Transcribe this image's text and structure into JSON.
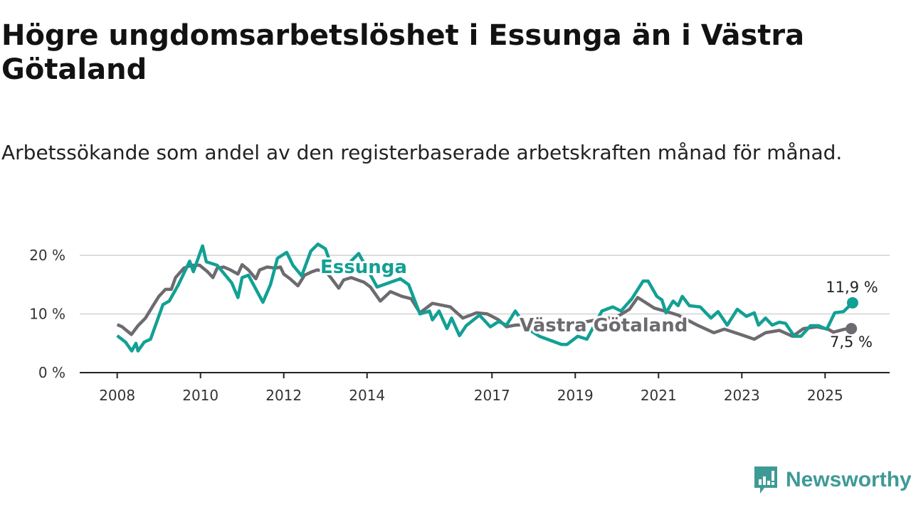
{
  "title": "Högre ungdomsarbetslöshet i Essunga än i Västra Götaland",
  "subtitle": "Arbetssökande som andel av den registerbaserade arbetskraften månad för månad.",
  "brand": {
    "name": "Newsworthy",
    "icon": "newsworthy-chart-bubble-icon",
    "color": "#3f9a96"
  },
  "chart_data": {
    "type": "line",
    "title": "Högre ungdomsarbetslöshet i Essunga än i Västra Götaland",
    "xlabel": "",
    "ylabel": "",
    "xlim": [
      2007.1,
      2026.55
    ],
    "ylim": [
      0,
      22
    ],
    "grid": true,
    "x_ticks": [
      {
        "value": 2008,
        "label": "2008"
      },
      {
        "value": 2010,
        "label": "2010"
      },
      {
        "value": 2012,
        "label": "2012"
      },
      {
        "value": 2014,
        "label": "2014"
      },
      {
        "value": 2017,
        "label": "2017"
      },
      {
        "value": 2019,
        "label": "2019"
      },
      {
        "value": 2021,
        "label": "2021"
      },
      {
        "value": 2023,
        "label": "2023"
      },
      {
        "value": 2025,
        "label": "2025"
      }
    ],
    "y_ticks": [
      {
        "value": 0,
        "label": "0 %"
      },
      {
        "value": 10,
        "label": "10 %"
      },
      {
        "value": 20,
        "label": "20 %"
      }
    ],
    "series": [
      {
        "name": "Västra Götaland",
        "color": "#6d6a70",
        "end_label": "7,5 %",
        "points": [
          [
            2008.0,
            8.2
          ],
          [
            2008.12,
            7.8
          ],
          [
            2008.34,
            6.5
          ],
          [
            2008.5,
            8
          ],
          [
            2008.68,
            9.3
          ],
          [
            2008.86,
            11.4
          ],
          [
            2009.0,
            13
          ],
          [
            2009.16,
            14.2
          ],
          [
            2009.3,
            14.2
          ],
          [
            2009.4,
            16.2
          ],
          [
            2009.6,
            17.8
          ],
          [
            2009.78,
            18.3
          ],
          [
            2009.98,
            18.3
          ],
          [
            2010.17,
            17.2
          ],
          [
            2010.3,
            16.2
          ],
          [
            2010.4,
            17.8
          ],
          [
            2010.56,
            18
          ],
          [
            2010.72,
            17.5
          ],
          [
            2010.9,
            16.8
          ],
          [
            2011.0,
            18.4
          ],
          [
            2011.15,
            17.5
          ],
          [
            2011.33,
            16
          ],
          [
            2011.42,
            17.5
          ],
          [
            2011.6,
            18
          ],
          [
            2011.8,
            17.8
          ],
          [
            2011.92,
            18
          ],
          [
            2012.0,
            16.8
          ],
          [
            2012.15,
            16
          ],
          [
            2012.34,
            14.8
          ],
          [
            2012.5,
            16.6
          ],
          [
            2012.68,
            17.2
          ],
          [
            2012.8,
            17.5
          ],
          [
            2013.0,
            17.3
          ],
          [
            2013.13,
            16.2
          ],
          [
            2013.32,
            14.4
          ],
          [
            2013.44,
            15.8
          ],
          [
            2013.62,
            16.2
          ],
          [
            2013.93,
            15.4
          ],
          [
            2014.08,
            14.6
          ],
          [
            2014.32,
            12.2
          ],
          [
            2014.56,
            13.8
          ],
          [
            2014.84,
            13
          ],
          [
            2015.06,
            12.6
          ],
          [
            2015.27,
            10.2
          ],
          [
            2015.57,
            11.8
          ],
          [
            2016.0,
            11.2
          ],
          [
            2016.3,
            9.3
          ],
          [
            2016.63,
            10.2
          ],
          [
            2016.89,
            10
          ],
          [
            2017.16,
            9
          ],
          [
            2017.35,
            7.8
          ],
          [
            2017.56,
            8.1
          ],
          [
            2018.0,
            8.3
          ],
          [
            2018.5,
            8.0
          ],
          [
            2019.0,
            8.3
          ],
          [
            2019.5,
            9.0
          ],
          [
            2020.0,
            9.5
          ],
          [
            2020.3,
            10.8
          ],
          [
            2020.5,
            12.8
          ],
          [
            2020.9,
            11
          ],
          [
            2021.15,
            10.5
          ],
          [
            2021.47,
            9.8
          ],
          [
            2021.93,
            8.1
          ],
          [
            2022.33,
            6.8
          ],
          [
            2022.58,
            7.4
          ],
          [
            2022.97,
            6.5
          ],
          [
            2023.3,
            5.7
          ],
          [
            2023.57,
            6.8
          ],
          [
            2023.9,
            7.2
          ],
          [
            2024.22,
            6.2
          ],
          [
            2024.48,
            7.5
          ],
          [
            2024.8,
            7.8
          ],
          [
            2025.07,
            7.4
          ],
          [
            2025.2,
            6.9
          ],
          [
            2025.47,
            7.4
          ],
          [
            2025.63,
            7.5
          ]
        ]
      },
      {
        "name": "Essunga",
        "color": "#12a094",
        "end_label": "11,9 %",
        "points": [
          [
            2008.0,
            6.3
          ],
          [
            2008.2,
            5.2
          ],
          [
            2008.35,
            3.7
          ],
          [
            2008.45,
            5.0
          ],
          [
            2008.5,
            3.7
          ],
          [
            2008.65,
            5.2
          ],
          [
            2008.8,
            5.7
          ],
          [
            2009.1,
            11.6
          ],
          [
            2009.25,
            12.2
          ],
          [
            2009.47,
            15
          ],
          [
            2009.74,
            19
          ],
          [
            2009.83,
            17.2
          ],
          [
            2010.05,
            21.6
          ],
          [
            2010.14,
            18.9
          ],
          [
            2010.4,
            18.3
          ],
          [
            2010.75,
            15.3
          ],
          [
            2010.9,
            12.8
          ],
          [
            2011.0,
            16.2
          ],
          [
            2011.15,
            16.6
          ],
          [
            2011.5,
            12.0
          ],
          [
            2011.68,
            15
          ],
          [
            2011.85,
            19.5
          ],
          [
            2012.07,
            20.5
          ],
          [
            2012.22,
            18.3
          ],
          [
            2012.43,
            16.5
          ],
          [
            2012.65,
            20.7
          ],
          [
            2012.82,
            21.9
          ],
          [
            2013.0,
            21.1
          ],
          [
            2013.13,
            18.5
          ],
          [
            2013.4,
            17.5
          ],
          [
            2013.8,
            20.3
          ],
          [
            2014.24,
            14.6
          ],
          [
            2014.8,
            16
          ],
          [
            2015.0,
            15
          ],
          [
            2015.27,
            10
          ],
          [
            2015.5,
            10.5
          ],
          [
            2015.57,
            9
          ],
          [
            2015.73,
            10.5
          ],
          [
            2015.92,
            7.5
          ],
          [
            2016.03,
            9.3
          ],
          [
            2016.22,
            6.3
          ],
          [
            2016.38,
            8
          ],
          [
            2016.7,
            9.8
          ],
          [
            2016.96,
            7.8
          ],
          [
            2017.16,
            8.7
          ],
          [
            2017.35,
            8.1
          ],
          [
            2017.56,
            10.5
          ],
          [
            2017.85,
            7.5
          ],
          [
            2018.14,
            6.2
          ],
          [
            2018.67,
            4.8
          ],
          [
            2018.8,
            4.8
          ],
          [
            2019.06,
            6.2
          ],
          [
            2019.28,
            5.7
          ],
          [
            2019.64,
            10.5
          ],
          [
            2019.9,
            11.2
          ],
          [
            2020.1,
            10.5
          ],
          [
            2020.36,
            12.6
          ],
          [
            2020.63,
            15.6
          ],
          [
            2020.75,
            15.6
          ],
          [
            2020.96,
            13
          ],
          [
            2021.08,
            12.4
          ],
          [
            2021.18,
            10.2
          ],
          [
            2021.35,
            12.2
          ],
          [
            2021.47,
            11.4
          ],
          [
            2021.57,
            13
          ],
          [
            2021.74,
            11.4
          ],
          [
            2022.0,
            11.2
          ],
          [
            2022.26,
            9.3
          ],
          [
            2022.43,
            10.4
          ],
          [
            2022.65,
            8.1
          ],
          [
            2022.89,
            10.8
          ],
          [
            2023.11,
            9.6
          ],
          [
            2023.3,
            10.2
          ],
          [
            2023.4,
            8.1
          ],
          [
            2023.57,
            9.3
          ],
          [
            2023.73,
            8.1
          ],
          [
            2023.9,
            8.6
          ],
          [
            2024.05,
            8.4
          ],
          [
            2024.26,
            6.2
          ],
          [
            2024.42,
            6.2
          ],
          [
            2024.65,
            8
          ],
          [
            2024.84,
            8
          ],
          [
            2025.04,
            7.4
          ],
          [
            2025.23,
            10.2
          ],
          [
            2025.44,
            10.4
          ],
          [
            2025.66,
            11.9
          ]
        ]
      }
    ],
    "annotations": [
      {
        "text": "Essunga",
        "series": "Essunga"
      },
      {
        "text": "Västra Götaland",
        "series": "Västra Götaland"
      }
    ]
  }
}
